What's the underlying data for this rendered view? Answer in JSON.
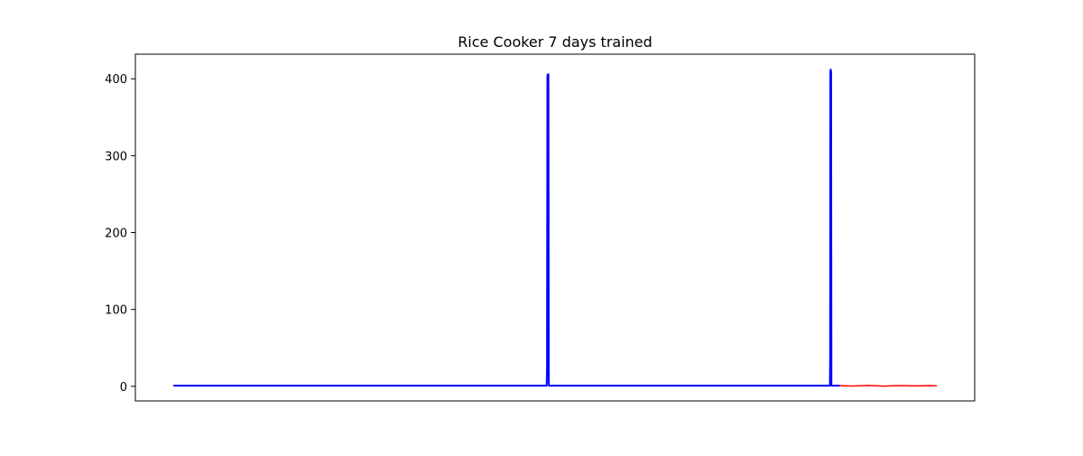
{
  "chart_data": {
    "type": "line",
    "title": "Rice Cooker 7 days trained",
    "xlabel": "",
    "ylabel": "",
    "x_ticks_visible": false,
    "xlim": [
      0,
      1000
    ],
    "ylim": [
      -19,
      432
    ],
    "y_ticks": [
      0,
      100,
      200,
      300,
      400
    ],
    "y_tick_labels": [
      "0",
      "100",
      "200",
      "300",
      "400"
    ],
    "grid": false,
    "legend": "none",
    "series": [
      {
        "color": "#0000ff",
        "points": [
          [
            0,
            0.8
          ],
          [
            489,
            0.8
          ],
          [
            489.5,
            20
          ],
          [
            490,
            405
          ],
          [
            490.5,
            402
          ],
          [
            491,
            404
          ],
          [
            491.3,
            406
          ],
          [
            491.8,
            2
          ],
          [
            492,
            0.8
          ],
          [
            860,
            0.8
          ],
          [
            860.3,
            30
          ],
          [
            860.6,
            410
          ],
          [
            861,
            412
          ],
          [
            861.6,
            409
          ],
          [
            862,
            2
          ],
          [
            862.3,
            0.8
          ],
          [
            873,
            0.8
          ]
        ]
      },
      {
        "color": "#ff0000",
        "points": [
          [
            873,
            0.8
          ],
          [
            890,
            0.4
          ],
          [
            910,
            1.1
          ],
          [
            930,
            0.3
          ],
          [
            950,
            1.0
          ],
          [
            970,
            0.5
          ],
          [
            990,
            0.9
          ],
          [
            1000,
            0.6
          ]
        ]
      }
    ]
  }
}
